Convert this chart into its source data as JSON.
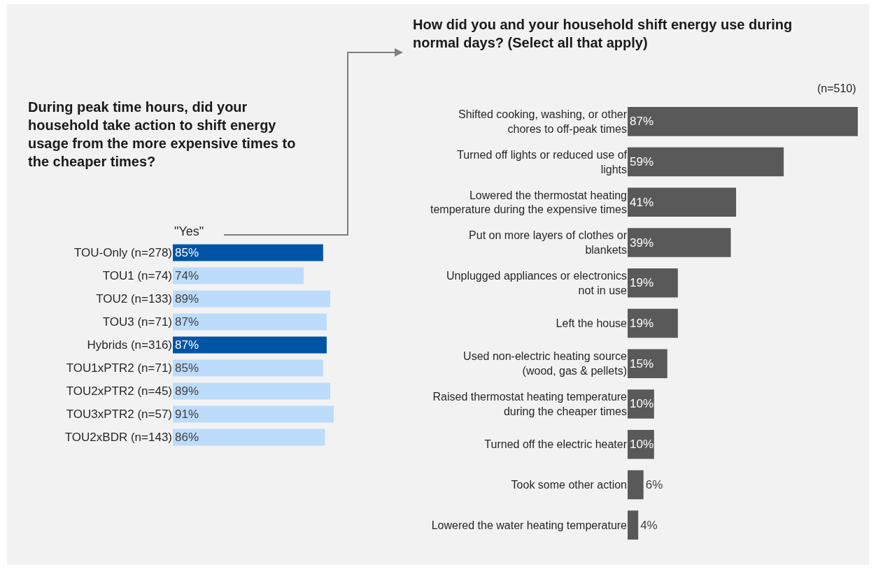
{
  "chart_data": [
    {
      "type": "bar",
      "orientation": "horizontal",
      "title": "During peak time hours, did your household take action to shift energy usage from the more expensive times to the cheaper times?",
      "annotations": [
        "\"Yes\""
      ],
      "categories": [
        "TOU-Only (n=278)",
        "TOU1 (n=74)",
        "TOU2 (n=133)",
        "TOU3 (n=71)",
        "Hybrids (n=316)",
        "TOU1xPTR2 (n=71)",
        "TOU2xPTR2 (n=45)",
        "TOU3xPTR2 (n=57)",
        "TOU2xBDR (n=143)"
      ],
      "values": [
        85,
        74,
        89,
        87,
        87,
        85,
        89,
        91,
        86
      ],
      "value_labels": [
        "85%",
        "74%",
        "89%",
        "87%",
        "87%",
        "85%",
        "89%",
        "91%",
        "86%"
      ],
      "colors": [
        "#0054a6",
        "#bddcfb",
        "#bddcfb",
        "#bddcfb",
        "#0054a6",
        "#bddcfb",
        "#bddcfb",
        "#bddcfb",
        "#bddcfb"
      ]
    },
    {
      "type": "bar",
      "orientation": "horizontal",
      "title": "How did you and your household shift energy use during normal days? (Select all that apply)",
      "annotations": [
        "(n=510)"
      ],
      "categories": [
        "Shifted cooking, washing, or other chores to off-peak times",
        "Turned off lights or reduced use of lights",
        "Lowered the thermostat heating temperature during the expensive times",
        "Put on more layers of clothes or blankets",
        "Unplugged appliances or electronics not in use",
        "Left the house",
        "Used non-electric heating source (wood, gas & pellets)",
        "Raised thermostat heating temperature during the cheaper times",
        "Turned off the electric heater",
        "Took some other action",
        "Lowered the water heating temperature"
      ],
      "values": [
        87,
        59,
        41,
        39,
        19,
        19,
        15,
        10,
        10,
        6,
        4
      ],
      "value_labels": [
        "87%",
        "59%",
        "41%",
        "39%",
        "19%",
        "19%",
        "15%",
        "10%",
        "10%",
        "6%",
        "4%"
      ],
      "color": "#595959"
    }
  ]
}
